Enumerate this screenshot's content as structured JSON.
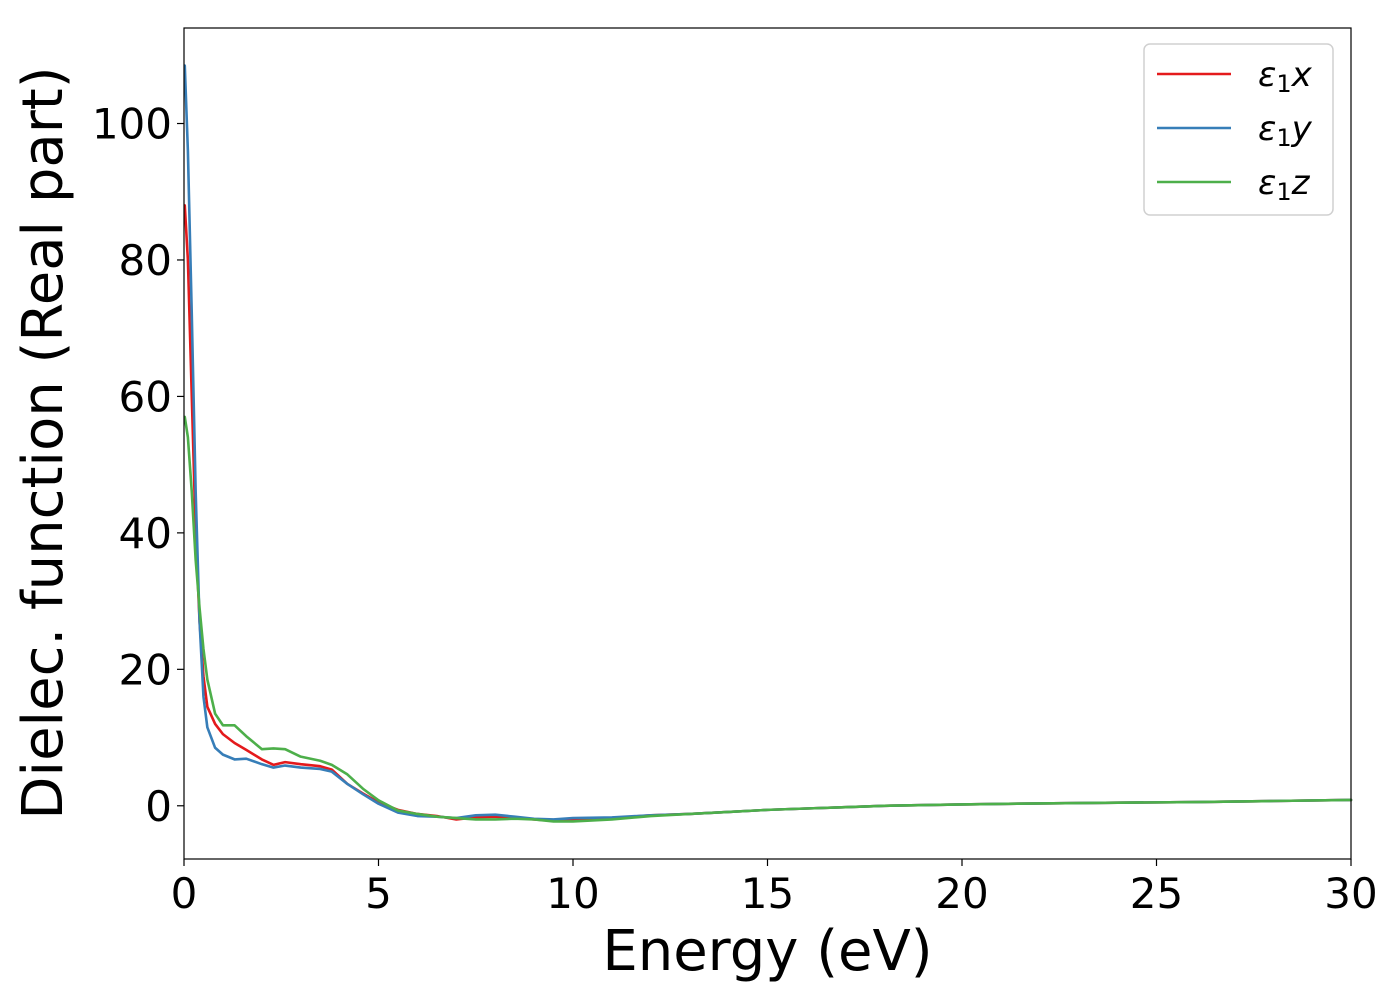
{
  "chart_data": {
    "type": "line",
    "title": "",
    "xlabel": "Energy (eV)",
    "ylabel": "Dielec. function (Real part)",
    "xlim": [
      0,
      30
    ],
    "ylim": [
      -7.8,
      114
    ],
    "xticks": [
      0,
      5,
      10,
      15,
      20,
      25,
      30
    ],
    "yticks": [
      0,
      20,
      40,
      60,
      80,
      100
    ],
    "xtick_labels": [
      "0",
      "5",
      "10",
      "15",
      "20",
      "25",
      "30"
    ],
    "ytick_labels": [
      "0",
      "20",
      "40",
      "60",
      "80",
      "100"
    ],
    "grid": false,
    "legend_position": "top-right",
    "series": [
      {
        "name": "ε1x",
        "legend_main": "ε",
        "legend_sub": "1",
        "legend_var": "x",
        "color": "#e41a1c",
        "points": [
          [
            0.02,
            88.0
          ],
          [
            0.1,
            80.0
          ],
          [
            0.2,
            60.0
          ],
          [
            0.3,
            40.0
          ],
          [
            0.4,
            27.0
          ],
          [
            0.5,
            19.0
          ],
          [
            0.6,
            14.5
          ],
          [
            0.8,
            12.0
          ],
          [
            1.0,
            10.5
          ],
          [
            1.3,
            9.2
          ],
          [
            1.6,
            8.2
          ],
          [
            2.0,
            6.8
          ],
          [
            2.3,
            6.0
          ],
          [
            2.6,
            6.4
          ],
          [
            3.0,
            6.1
          ],
          [
            3.5,
            5.8
          ],
          [
            3.8,
            5.3
          ],
          [
            4.2,
            3.2
          ],
          [
            4.6,
            1.8
          ],
          [
            5.0,
            0.5
          ],
          [
            5.5,
            -0.6
          ],
          [
            6.0,
            -1.2
          ],
          [
            6.5,
            -1.5
          ],
          [
            7.0,
            -2.0
          ],
          [
            7.5,
            -1.7
          ],
          [
            8.0,
            -1.6
          ],
          [
            8.5,
            -1.7
          ],
          [
            9.0,
            -2.0
          ],
          [
            9.5,
            -2.2
          ],
          [
            10.0,
            -2.0
          ],
          [
            11.0,
            -1.8
          ],
          [
            12.0,
            -1.4
          ],
          [
            13.0,
            -1.2
          ],
          [
            14.0,
            -0.9
          ],
          [
            15.0,
            -0.6
          ],
          [
            16.0,
            -0.4
          ],
          [
            17.0,
            -0.2
          ],
          [
            18.0,
            0.0
          ],
          [
            20.0,
            0.2
          ],
          [
            22.0,
            0.35
          ],
          [
            24.0,
            0.45
          ],
          [
            26.0,
            0.55
          ],
          [
            28.0,
            0.7
          ],
          [
            30.0,
            0.85
          ]
        ]
      },
      {
        "name": "ε1y",
        "legend_main": "ε",
        "legend_sub": "1",
        "legend_var": "y",
        "color": "#377eb8",
        "points": [
          [
            0.02,
            108.5
          ],
          [
            0.1,
            96.0
          ],
          [
            0.2,
            72.0
          ],
          [
            0.3,
            46.0
          ],
          [
            0.4,
            27.0
          ],
          [
            0.5,
            16.0
          ],
          [
            0.6,
            11.5
          ],
          [
            0.8,
            8.5
          ],
          [
            1.0,
            7.5
          ],
          [
            1.3,
            6.8
          ],
          [
            1.6,
            6.9
          ],
          [
            2.0,
            6.1
          ],
          [
            2.3,
            5.6
          ],
          [
            2.6,
            5.9
          ],
          [
            3.0,
            5.6
          ],
          [
            3.5,
            5.4
          ],
          [
            3.8,
            5.0
          ],
          [
            4.2,
            3.2
          ],
          [
            4.6,
            1.7
          ],
          [
            5.0,
            0.3
          ],
          [
            5.5,
            -1.0
          ],
          [
            6.0,
            -1.5
          ],
          [
            6.5,
            -1.6
          ],
          [
            7.0,
            -1.8
          ],
          [
            7.5,
            -1.4
          ],
          [
            8.0,
            -1.3
          ],
          [
            8.5,
            -1.6
          ],
          [
            9.0,
            -1.9
          ],
          [
            9.5,
            -2.0
          ],
          [
            10.0,
            -1.8
          ],
          [
            11.0,
            -1.7
          ],
          [
            12.0,
            -1.4
          ],
          [
            13.0,
            -1.2
          ],
          [
            14.0,
            -0.9
          ],
          [
            15.0,
            -0.6
          ],
          [
            16.0,
            -0.4
          ],
          [
            17.0,
            -0.2
          ],
          [
            18.0,
            0.0
          ],
          [
            20.0,
            0.2
          ],
          [
            22.0,
            0.35
          ],
          [
            24.0,
            0.45
          ],
          [
            26.0,
            0.55
          ],
          [
            28.0,
            0.7
          ],
          [
            30.0,
            0.85
          ]
        ]
      },
      {
        "name": "ε1z",
        "legend_main": "ε",
        "legend_sub": "1",
        "legend_var": "z",
        "color": "#4daf4a",
        "points": [
          [
            0.02,
            57.0
          ],
          [
            0.1,
            54.0
          ],
          [
            0.2,
            46.0
          ],
          [
            0.3,
            36.0
          ],
          [
            0.4,
            29.0
          ],
          [
            0.5,
            23.0
          ],
          [
            0.6,
            18.5
          ],
          [
            0.8,
            13.5
          ],
          [
            1.0,
            11.8
          ],
          [
            1.3,
            11.8
          ],
          [
            1.6,
            10.2
          ],
          [
            2.0,
            8.3
          ],
          [
            2.3,
            8.4
          ],
          [
            2.6,
            8.3
          ],
          [
            3.0,
            7.2
          ],
          [
            3.5,
            6.6
          ],
          [
            3.8,
            6.0
          ],
          [
            4.2,
            4.6
          ],
          [
            4.6,
            2.5
          ],
          [
            5.0,
            0.8
          ],
          [
            5.5,
            -0.7
          ],
          [
            6.0,
            -1.2
          ],
          [
            6.5,
            -1.6
          ],
          [
            7.0,
            -1.8
          ],
          [
            7.5,
            -2.0
          ],
          [
            8.0,
            -2.0
          ],
          [
            8.5,
            -1.9
          ],
          [
            9.0,
            -2.0
          ],
          [
            9.5,
            -2.3
          ],
          [
            10.0,
            -2.3
          ],
          [
            11.0,
            -2.0
          ],
          [
            12.0,
            -1.5
          ],
          [
            13.0,
            -1.2
          ],
          [
            14.0,
            -0.9
          ],
          [
            15.0,
            -0.6
          ],
          [
            16.0,
            -0.4
          ],
          [
            17.0,
            -0.2
          ],
          [
            18.0,
            0.0
          ],
          [
            20.0,
            0.2
          ],
          [
            22.0,
            0.35
          ],
          [
            24.0,
            0.45
          ],
          [
            26.0,
            0.55
          ],
          [
            28.0,
            0.7
          ],
          [
            30.0,
            0.85
          ]
        ]
      }
    ]
  }
}
